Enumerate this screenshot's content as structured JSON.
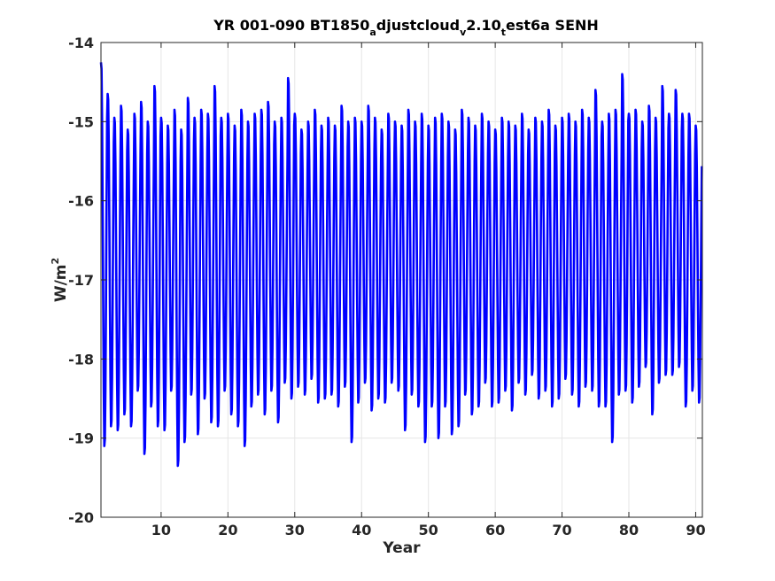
{
  "chart_data": {
    "type": "line",
    "title": {
      "parts": [
        {
          "text": "YR 001-090 BT1850",
          "sub": false
        },
        {
          "text": "a",
          "sub": true
        },
        {
          "text": "djustcloud",
          "sub": false
        },
        {
          "text": "v",
          "sub": true
        },
        {
          "text": "2.10",
          "sub": false
        },
        {
          "text": "t",
          "sub": true
        },
        {
          "text": "est6a SENH",
          "sub": false
        }
      ]
    },
    "xlabel": "Year",
    "ylabel": "W/m",
    "ylabel_superscript": "2",
    "xlim": [
      1,
      91
    ],
    "ylim": [
      -20,
      -14
    ],
    "xticks": [
      10,
      20,
      30,
      40,
      50,
      60,
      70,
      80,
      90
    ],
    "yticks": [
      -20,
      -19,
      -18,
      -17,
      -16,
      -15,
      -14
    ],
    "grid": true,
    "line_color": "#0000ff",
    "grid_color": "#e6e6e6",
    "series": [
      {
        "maxima": [
          -14.25,
          -14.65,
          -14.95,
          -14.8,
          -15.1,
          -14.9,
          -14.75,
          -15.0,
          -14.55,
          -14.95,
          -15.05,
          -14.85,
          -15.1,
          -14.7,
          -14.95,
          -14.85,
          -14.9,
          -14.55,
          -14.95,
          -14.9,
          -15.05,
          -14.85,
          -15.0,
          -14.9,
          -14.85,
          -14.75,
          -15.0,
          -14.95,
          -14.45,
          -14.9,
          -15.1,
          -15.0,
          -14.85,
          -15.05,
          -14.95,
          -15.05,
          -14.8,
          -15.0,
          -14.95,
          -15.0,
          -14.8,
          -14.95,
          -15.1,
          -14.9,
          -15.0,
          -15.05,
          -14.85,
          -15.0,
          -14.9,
          -15.05,
          -14.95,
          -14.9,
          -15.0,
          -15.1,
          -14.85,
          -14.95,
          -15.05,
          -14.9,
          -15.0,
          -15.1,
          -14.95,
          -15.0,
          -15.05,
          -14.9,
          -15.1,
          -14.95,
          -15.0,
          -14.85,
          -15.05,
          -14.95,
          -14.9,
          -15.0,
          -14.85,
          -14.95,
          -14.6,
          -15.0,
          -14.9,
          -14.85,
          -14.4,
          -14.9,
          -14.85,
          -15.0,
          -14.8,
          -14.95,
          -14.55,
          -14.9,
          -14.6,
          -14.9,
          -14.9,
          -15.05
        ],
        "minima": [
          -19.1,
          -18.85,
          -18.9,
          -18.7,
          -18.85,
          -18.4,
          -19.2,
          -18.6,
          -18.85,
          -18.9,
          -18.4,
          -19.35,
          -19.05,
          -18.45,
          -18.95,
          -18.5,
          -18.8,
          -18.85,
          -18.4,
          -18.7,
          -18.85,
          -19.1,
          -18.6,
          -18.45,
          -18.7,
          -18.4,
          -18.8,
          -18.3,
          -18.5,
          -18.35,
          -18.45,
          -18.25,
          -18.55,
          -18.5,
          -18.45,
          -18.6,
          -18.35,
          -19.05,
          -18.55,
          -18.3,
          -18.65,
          -18.5,
          -18.55,
          -18.3,
          -18.4,
          -18.9,
          -18.45,
          -18.6,
          -19.05,
          -18.6,
          -19.0,
          -18.6,
          -18.95,
          -18.85,
          -18.45,
          -18.7,
          -18.6,
          -18.3,
          -18.6,
          -18.55,
          -18.4,
          -18.65,
          -18.3,
          -18.45,
          -18.2,
          -18.5,
          -18.4,
          -18.6,
          -18.5,
          -18.25,
          -18.45,
          -18.6,
          -18.35,
          -18.4,
          -18.6,
          -18.6,
          -19.05,
          -18.45,
          -18.4,
          -18.55,
          -18.35,
          -18.1,
          -18.7,
          -18.3,
          -18.2,
          -18.2,
          -18.1,
          -18.6,
          -18.4,
          -18.55
        ]
      }
    ]
  }
}
